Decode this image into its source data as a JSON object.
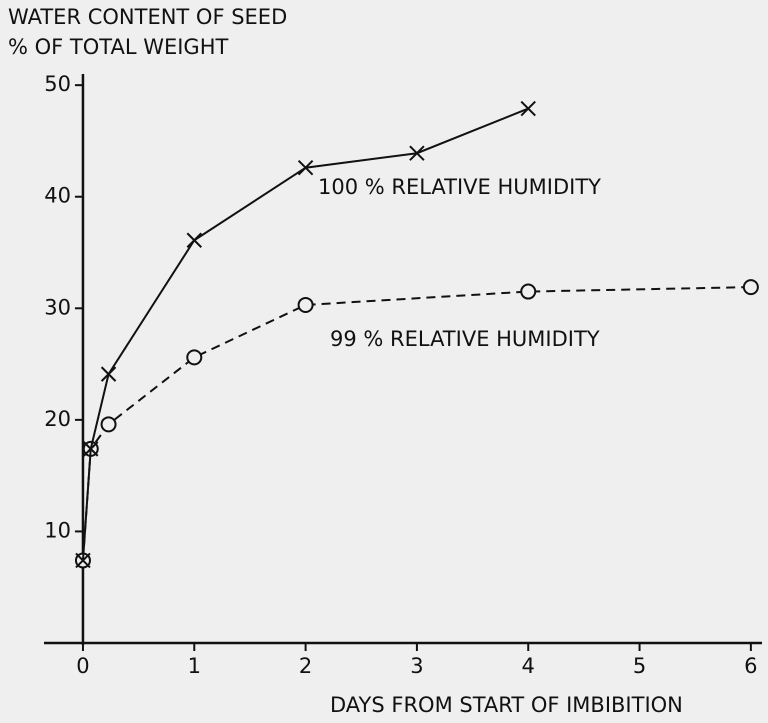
{
  "chart_data": {
    "type": "line",
    "ylabel": [
      "WATER CONTENT OF SEED",
      "% OF TOTAL WEIGHT"
    ],
    "xlabel": "DAYS FROM START OF IMBIBITION",
    "xlim": [
      -0.35,
      6.1
    ],
    "xticks": [
      0,
      1,
      2,
      3,
      4,
      5,
      6
    ],
    "ylim": [
      0,
      51
    ],
    "yticks": [
      10,
      20,
      30,
      40,
      50
    ],
    "series": [
      {
        "name": "100 % RELATIVE HUMIDITY",
        "color": "#111111",
        "marker": "x",
        "dashed": false,
        "x": [
          0,
          0.07,
          0.23,
          1,
          2,
          3,
          4
        ],
        "values": [
          7.4,
          17.4,
          24.1,
          36.1,
          42.6,
          43.9,
          47.9
        ]
      },
      {
        "name": "99 % RELATIVE HUMIDITY",
        "color": "#111111",
        "marker": "circle",
        "dashed": true,
        "x": [
          0,
          0.07,
          0.23,
          1,
          2,
          4,
          6
        ],
        "values": [
          7.4,
          17.4,
          19.6,
          25.6,
          30.3,
          31.5,
          31.9
        ]
      }
    ]
  }
}
